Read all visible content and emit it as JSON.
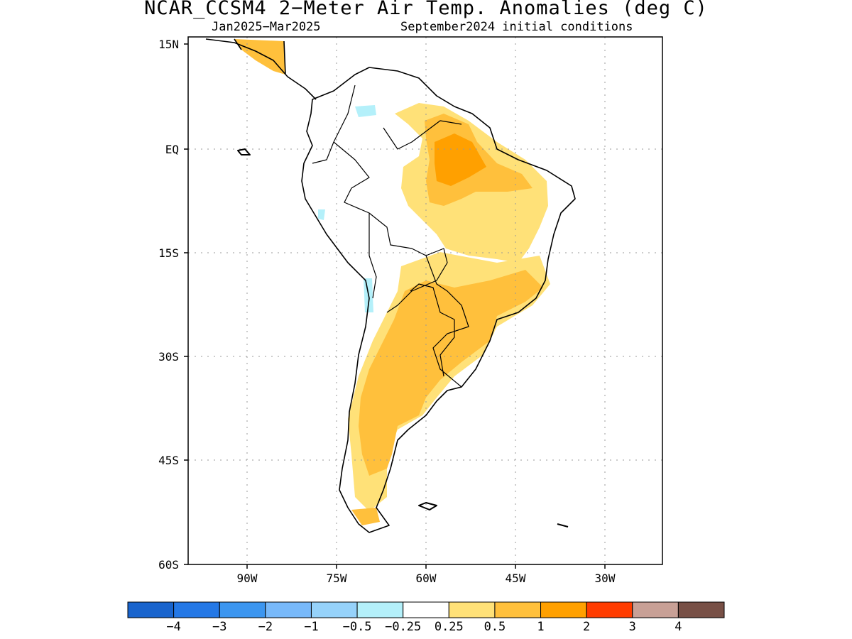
{
  "header": {
    "title": "NCAR_CCSM4 2−Meter Air Temp. Anomalies (deg C)",
    "period": "Jan2025−Mar2025",
    "init": "September2024 initial conditions"
  },
  "map": {
    "lat_labels": [
      "15N",
      "EQ",
      "15S",
      "30S",
      "45S",
      "60S"
    ],
    "lon_labels": [
      "90W",
      "75W",
      "60W",
      "45W",
      "30W"
    ],
    "lon_range": [
      -100,
      -20
    ],
    "lat_range": [
      -60,
      15
    ],
    "gridlines": "dotted"
  },
  "colorbar": {
    "colors": [
      "#1964cd",
      "#2478e6",
      "#3c96f0",
      "#78b9fa",
      "#96d2fa",
      "#b4f0fa",
      "#ffffff",
      "#ffe178",
      "#ffc03c",
      "#ffa000",
      "#ff3c00",
      "#c8a096",
      "#785046"
    ],
    "labels": [
      "−4",
      "−3",
      "−2",
      "−1",
      "−0.5",
      "−0.25",
      "0.25",
      "0.5",
      "1",
      "2",
      "3",
      "4"
    ]
  }
}
